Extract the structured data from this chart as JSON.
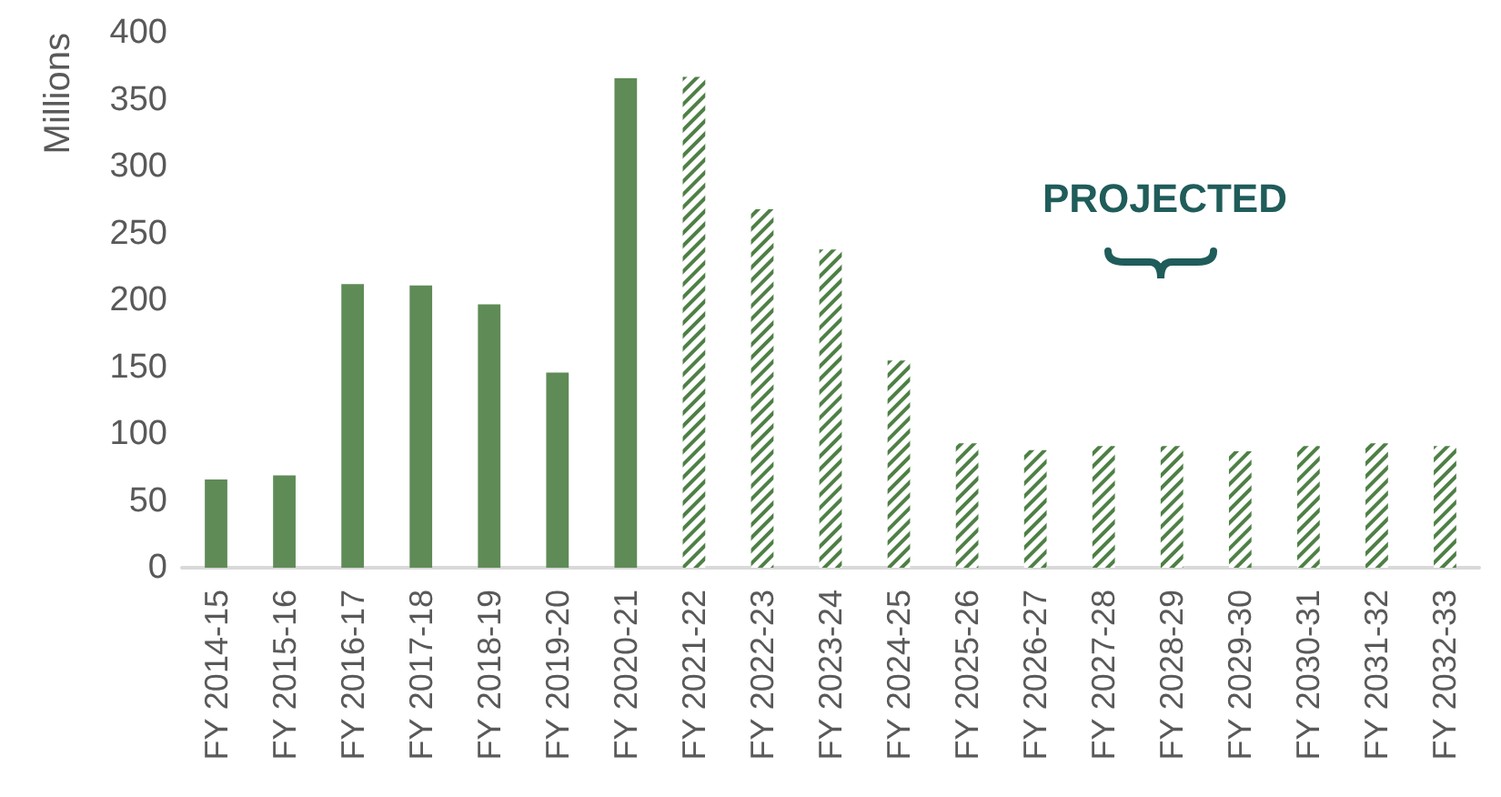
{
  "chart_data": {
    "type": "bar",
    "ylabel": "Millions",
    "categories": [
      "FY 2014-15",
      "FY 2015-16",
      "FY 2016-17",
      "FY 2017-18",
      "FY 2018-19",
      "FY 2019-20",
      "FY 2020-21",
      "FY 2021-22",
      "FY 2022-23",
      "FY 2023-24",
      "FY 2024-25",
      "FY 2025-26",
      "FY 2026-27",
      "FY 2027-28",
      "FY 2028-29",
      "FY 2029-30",
      "FY 2030-31",
      "FY 2031-32",
      "FY 2032-33"
    ],
    "series": [
      {
        "color": "#5f8b57",
        "values": [
          66,
          69,
          212,
          211,
          197,
          146,
          366,
          null,
          null,
          null,
          null,
          null,
          null,
          null,
          null,
          null,
          null,
          null,
          null
        ]
      },
      {
        "color": "#4e8045",
        "values": [
          null,
          null,
          null,
          null,
          null,
          null,
          null,
          367,
          268,
          238,
          155,
          93,
          88,
          91,
          91,
          87,
          91,
          93,
          91
        ]
      }
    ],
    "stacked": true,
    "ylim": [
      0,
      400
    ],
    "yticks": [
      0,
      50,
      100,
      150,
      200,
      250,
      300,
      350,
      400
    ],
    "grid": false,
    "annotations": [
      "PROJECTED"
    ]
  }
}
